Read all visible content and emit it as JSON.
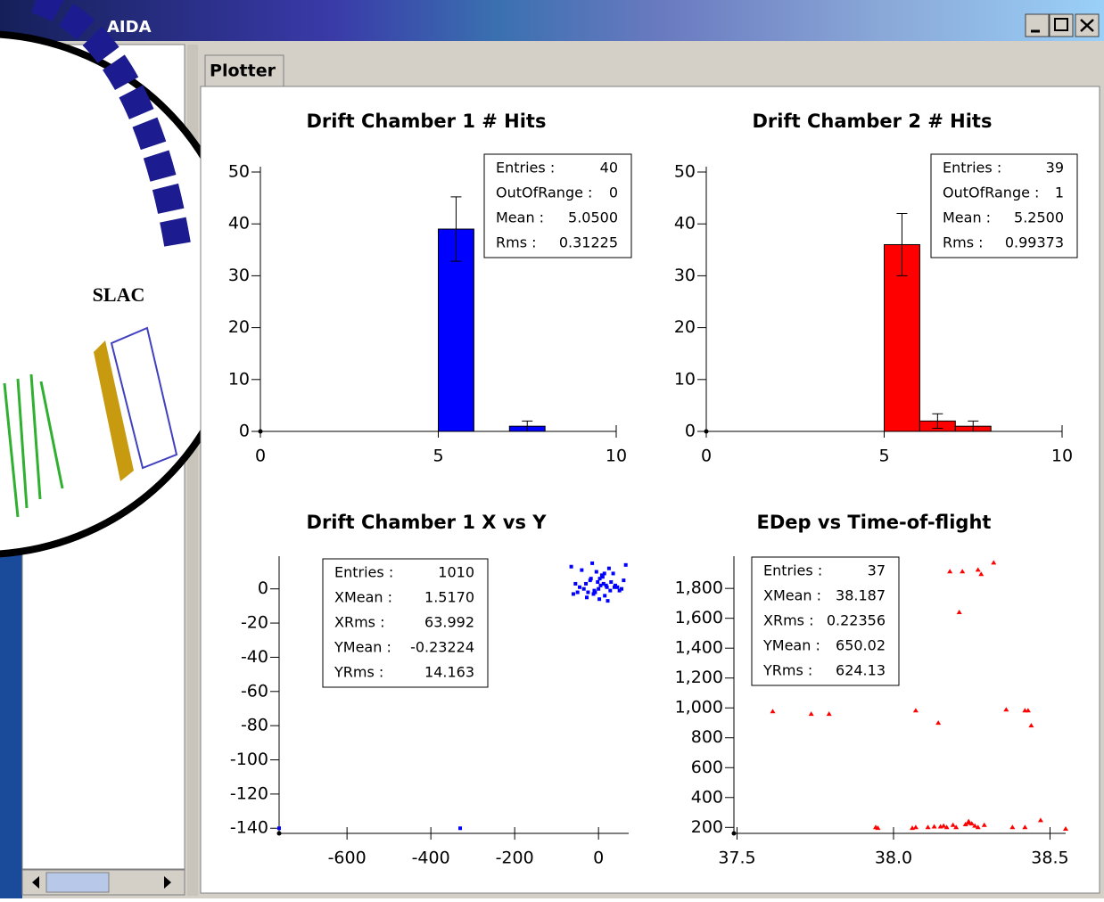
{
  "window": {
    "title": "AIDA",
    "tab": "Plotter",
    "logo_text": "SLAC"
  },
  "chart_data": [
    {
      "type": "histogram",
      "title": "Drift Chamber 1 # Hits",
      "color": "#0000ff",
      "bins": [
        0,
        1,
        2,
        3,
        4,
        5,
        6,
        7,
        8,
        9,
        10
      ],
      "counts": [
        0,
        0,
        0,
        0,
        0,
        39,
        0,
        1,
        0,
        0
      ],
      "errors": [
        0,
        0,
        0,
        0,
        0,
        6.2,
        0,
        1,
        0,
        0
      ],
      "xlim": [
        0,
        10
      ],
      "ylim": [
        0,
        50
      ],
      "xticks": [
        0,
        5,
        10
      ],
      "yticks": [
        0,
        10,
        20,
        30,
        40,
        50
      ],
      "stats": [
        [
          "Entries :",
          "40"
        ],
        [
          "OutOfRange :",
          "0"
        ],
        [
          "Mean :",
          "5.0500"
        ],
        [
          "Rms :",
          "0.31225"
        ]
      ]
    },
    {
      "type": "histogram",
      "title": "Drift Chamber 2 # Hits",
      "color": "#ff0000",
      "bins": [
        0,
        1,
        2,
        3,
        4,
        5,
        6,
        7,
        8,
        9,
        10
      ],
      "counts": [
        0,
        0,
        0,
        0,
        0,
        36,
        2,
        1,
        0,
        0
      ],
      "errors": [
        0,
        0,
        0,
        0,
        0,
        6,
        1.4,
        1,
        0,
        0
      ],
      "xlim": [
        0,
        10
      ],
      "ylim": [
        0,
        50
      ],
      "xticks": [
        0,
        5,
        10
      ],
      "yticks": [
        0,
        10,
        20,
        30,
        40,
        50
      ],
      "stats": [
        [
          "Entries :",
          "39"
        ],
        [
          "OutOfRange :",
          "1"
        ],
        [
          "Mean :",
          "5.2500"
        ],
        [
          "Rms :",
          "0.99373"
        ]
      ]
    },
    {
      "type": "scatter",
      "title": "Drift Chamber 1 X vs Y",
      "color": "#0000ff",
      "marker": "square",
      "x": [
        -762,
        -330,
        0,
        5,
        -10,
        12,
        20,
        -25,
        30,
        -35,
        40,
        -45,
        50,
        -55,
        60,
        -60,
        8,
        -5,
        15,
        -18,
        25,
        -28,
        35,
        -40,
        45,
        -50,
        55,
        65,
        -65,
        2,
        -2,
        10,
        -12,
        18,
        -20,
        28,
        -30,
        38,
        -15,
        22,
        3,
        -8,
        14
      ],
      "y": [
        -140,
        -140,
        0,
        2,
        -1,
        3,
        1,
        -2,
        4,
        0,
        2,
        1,
        -1,
        3,
        5,
        -3,
        8,
        10,
        -4,
        6,
        12,
        -5,
        9,
        11,
        1,
        -2,
        0,
        14,
        13,
        -6,
        4,
        7,
        -3,
        2,
        5,
        -1,
        3,
        1,
        15,
        -7,
        6,
        -2,
        9
      ],
      "xlim": [
        -762,
        72
      ],
      "ylim": [
        -143,
        16
      ],
      "xticks": [
        -600,
        -400,
        -200,
        0
      ],
      "yticks": [
        0,
        -20,
        -40,
        -60,
        -80,
        -100,
        -120,
        -140
      ],
      "stats": [
        [
          "Entries :",
          "1010"
        ],
        [
          "XMean :",
          "1.5170"
        ],
        [
          "XRms :",
          "63.992"
        ],
        [
          "YMean :",
          "-0.23224"
        ],
        [
          "YRms :",
          "14.163"
        ]
      ]
    },
    {
      "type": "scatter",
      "title": "EDep vs Time-of-flight",
      "color": "#ff0000",
      "marker": "triangle",
      "x": [
        37.614,
        37.737,
        37.794,
        37.943,
        38.071,
        38.071,
        38.143,
        38.11,
        38.13,
        38.16,
        38.17,
        38.19,
        38.2,
        38.23,
        38.24,
        38.26,
        38.27,
        38.18,
        38.22,
        38.27,
        38.28,
        38.32,
        38.21,
        38.36,
        38.42,
        38.43,
        38.44,
        38.47,
        38.38,
        38.42,
        38.55,
        38.25,
        38.06,
        38.15,
        38.29,
        37.95,
        38.24
      ],
      "y": [
        976,
        959,
        959,
        200,
        982,
        200,
        899,
        200,
        205,
        210,
        200,
        215,
        200,
        220,
        230,
        210,
        200,
        1913,
        1913,
        1924,
        1895,
        1972,
        1640,
        988,
        982,
        982,
        881,
        247,
        200,
        200,
        190,
        225,
        195,
        205,
        215,
        195,
        240
      ],
      "xlim": [
        37.49,
        38.55
      ],
      "ylim": [
        160,
        1980
      ],
      "xticks": [
        37.5,
        {
          "value": 38,
          "label": "38.0"
        },
        38.5
      ],
      "yticks": [
        200,
        400,
        600,
        800,
        {
          "value": 1000,
          "label": "1,000"
        },
        {
          "value": 1200,
          "label": "1,200"
        },
        {
          "value": 1400,
          "label": "1,400"
        },
        {
          "value": 1600,
          "label": "1,600"
        },
        {
          "value": 1800,
          "label": "1,800"
        }
      ],
      "stats": [
        [
          "Entries :",
          "37"
        ],
        [
          "XMean :",
          "38.187"
        ],
        [
          "XRms :",
          "0.22356"
        ],
        [
          "YMean :",
          "650.02"
        ],
        [
          "YRms :",
          "624.13"
        ]
      ]
    }
  ]
}
